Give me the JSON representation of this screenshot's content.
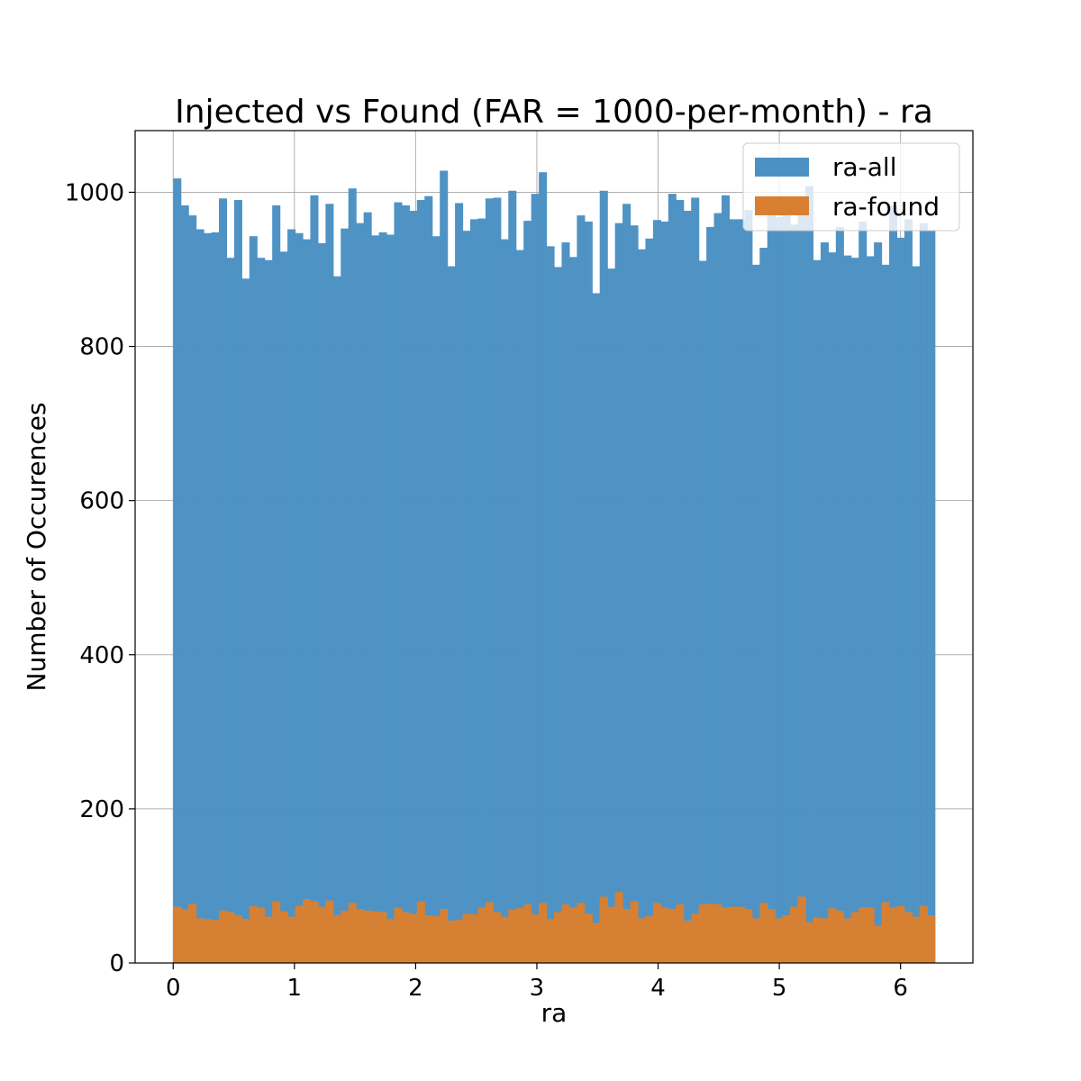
{
  "chart_data": {
    "type": "bar",
    "title": "Injected vs Found (FAR = 1000-per-month) - ra",
    "xlabel": "ra",
    "ylabel": "Number of Occurences",
    "xlim": [
      -0.314,
      6.597
    ],
    "ylim": [
      0,
      1080
    ],
    "xticks": [
      "0",
      "1",
      "2",
      "3",
      "4",
      "5",
      "6"
    ],
    "yticks": [
      "0",
      "200",
      "400",
      "600",
      "800",
      "1000"
    ],
    "grid": true,
    "legend_position": "top-right",
    "bin_range": [
      0,
      6.283
    ],
    "series": [
      {
        "name": "ra-all",
        "color": "#4b91c4",
        "values": [
          1018,
          983,
          970,
          952,
          947,
          948,
          992,
          915,
          990,
          888,
          943,
          915,
          912,
          983,
          923,
          952,
          947,
          939,
          996,
          934,
          985,
          891,
          953,
          1005,
          960,
          974,
          944,
          948,
          945,
          987,
          983,
          976,
          990,
          995,
          943,
          1028,
          904,
          986,
          950,
          965,
          966,
          992,
          993,
          939,
          1002,
          925,
          963,
          998,
          1026,
          930,
          903,
          935,
          916,
          970,
          962,
          869,
          1002,
          901,
          960,
          985,
          957,
          926,
          940,
          964,
          962,
          998,
          990,
          976,
          993,
          911,
          955,
          973,
          996,
          965,
          965,
          977,
          906,
          928,
          993,
          968,
          985,
          958,
          990,
          1008,
          912,
          935,
          922,
          955,
          918,
          915,
          962,
          917,
          935,
          906,
          983,
          941,
          965,
          904,
          960,
          950
        ]
      },
      {
        "name": "ra-found",
        "color": "#d97f31",
        "values": [
          73,
          70,
          77,
          58,
          57,
          56,
          68,
          66,
          62,
          57,
          74,
          72,
          60,
          80,
          67,
          60,
          74,
          83,
          80,
          73,
          81,
          62,
          68,
          78,
          70,
          68,
          67,
          66,
          57,
          72,
          66,
          64,
          80,
          62,
          61,
          70,
          55,
          56,
          64,
          63,
          72,
          79,
          66,
          60,
          69,
          71,
          76,
          63,
          78,
          57,
          66,
          76,
          72,
          78,
          64,
          52,
          86,
          73,
          92,
          70,
          80,
          58,
          61,
          78,
          72,
          70,
          76,
          55,
          64,
          76,
          77,
          76,
          72,
          73,
          73,
          70,
          58,
          78,
          70,
          58,
          62,
          73,
          86,
          53,
          59,
          58,
          71,
          68,
          58,
          66,
          72,
          72,
          48,
          79,
          72,
          74,
          66,
          60,
          74,
          62
        ]
      }
    ]
  }
}
